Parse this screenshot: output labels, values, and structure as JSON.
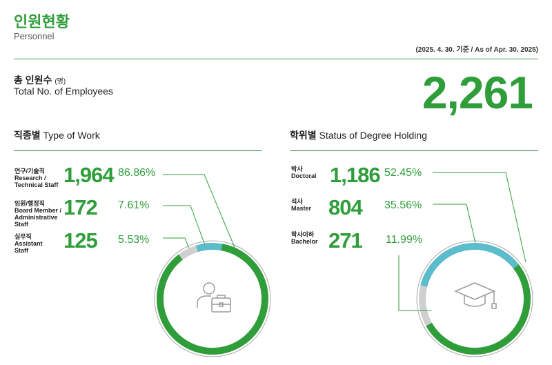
{
  "header": {
    "title": "인원현황",
    "subtitle": "Personnel",
    "date": "(2025. 4. 30. 기준 / As of Apr. 30. 2025)"
  },
  "total": {
    "label_ko": "총 인원수",
    "unit": "(명)",
    "label_en": "Total No. of Employees",
    "value": "2,261"
  },
  "colors": {
    "green": "#2f9e3a",
    "blue": "#5bbccc",
    "grey": "#cfcfcf"
  },
  "work": {
    "title_ko": "직종별",
    "title_en": "Type of Work",
    "icon": "person-briefcase-icon",
    "items": [
      {
        "ko": "연구/기술직",
        "en": "Research / Technical Staff",
        "value": "1,964",
        "pct": "86.86%",
        "share": 86.86,
        "color": "#2f9e3a"
      },
      {
        "ko": "임원/행정직",
        "en": "Board Member / Administrative Staff",
        "value": "172",
        "pct": "7.61%",
        "share": 7.61,
        "color": "#5bbccc"
      },
      {
        "ko": "실무직",
        "en": "Assistant Staff",
        "value": "125",
        "pct": "5.53%",
        "share": 5.53,
        "color": "#cfcfcf"
      }
    ]
  },
  "degree": {
    "title_ko": "학위별",
    "title_en": "Status of Degree Holding",
    "icon": "graduation-cap-icon",
    "items": [
      {
        "ko": "박사",
        "en": "Doctoral",
        "value": "1,186",
        "pct": "52.45%",
        "share": 52.45,
        "color": "#2f9e3a"
      },
      {
        "ko": "석사",
        "en": "Master",
        "value": "804",
        "pct": "35.56%",
        "share": 35.56,
        "color": "#5bbccc"
      },
      {
        "ko": "학사이하",
        "en": "Bachelor",
        "value": "271",
        "pct": "11.99%",
        "share": 11.99,
        "color": "#cfcfcf"
      }
    ]
  }
}
